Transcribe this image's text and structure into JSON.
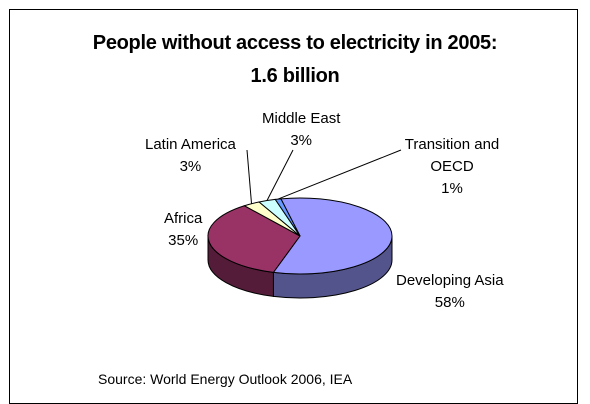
{
  "chart_data": {
    "type": "pie",
    "title": "People without access to electricity in 2005:",
    "subtitle": "1.6 billion",
    "slices": [
      {
        "label": "Developing Asia",
        "value": 58,
        "value_text": "58%",
        "color": "#9999FF"
      },
      {
        "label": "Africa",
        "value": 35,
        "value_text": "35%",
        "color": "#993366"
      },
      {
        "label": "Latin America",
        "value": 3,
        "value_text": "3%",
        "color": "#FFFFCC"
      },
      {
        "label": "Middle East",
        "value": 3,
        "value_text": "3%",
        "color": "#CCFFFF"
      },
      {
        "label": "Transition and OECD",
        "value": 1,
        "value_text": "1%",
        "color": "#6699FF"
      }
    ],
    "source": "Source: World Energy Outlook 2006, IEA"
  }
}
